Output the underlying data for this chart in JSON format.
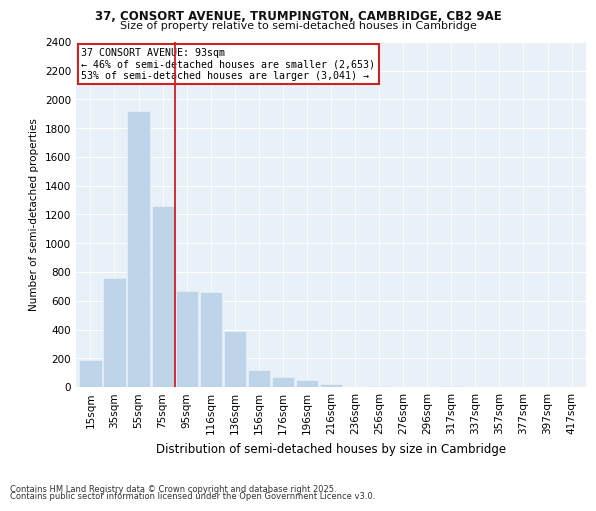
{
  "title1": "37, CONSORT AVENUE, TRUMPINGTON, CAMBRIDGE, CB2 9AE",
  "title2": "Size of property relative to semi-detached houses in Cambridge",
  "xlabel": "Distribution of semi-detached houses by size in Cambridge",
  "ylabel": "Number of semi-detached properties",
  "categories": [
    "15sqm",
    "35sqm",
    "55sqm",
    "75sqm",
    "95sqm",
    "116sqm",
    "136sqm",
    "156sqm",
    "176sqm",
    "196sqm",
    "216sqm",
    "236sqm",
    "256sqm",
    "276sqm",
    "296sqm",
    "317sqm",
    "337sqm",
    "357sqm",
    "377sqm",
    "397sqm",
    "417sqm"
  ],
  "values": [
    190,
    760,
    1920,
    1260,
    670,
    660,
    390,
    120,
    70,
    50,
    20,
    0,
    10,
    0,
    0,
    10,
    0,
    0,
    0,
    0,
    0
  ],
  "bar_color": "#bdd4e9",
  "vline_color": "#cc2222",
  "vline_x": 3.5,
  "annotation_title": "37 CONSORT AVENUE: 93sqm",
  "annotation_line1": "← 46% of semi-detached houses are smaller (2,653)",
  "annotation_line2": "53% of semi-detached houses are larger (3,041) →",
  "annotation_box_edgecolor": "#cc2222",
  "ylim": [
    0,
    2400
  ],
  "yticks": [
    0,
    200,
    400,
    600,
    800,
    1000,
    1200,
    1400,
    1600,
    1800,
    2000,
    2200,
    2400
  ],
  "footnote1": "Contains HM Land Registry data © Crown copyright and database right 2025.",
  "footnote2": "Contains public sector information licensed under the Open Government Licence v3.0.",
  "bg_color": "#e8f0f8",
  "fig_bg_color": "#ffffff",
  "title1_fontsize": 8.5,
  "title2_fontsize": 8.0,
  "xlabel_fontsize": 8.5,
  "ylabel_fontsize": 7.5,
  "tick_fontsize": 7.5,
  "annot_fontsize": 7.2,
  "footnote_fontsize": 6.0
}
